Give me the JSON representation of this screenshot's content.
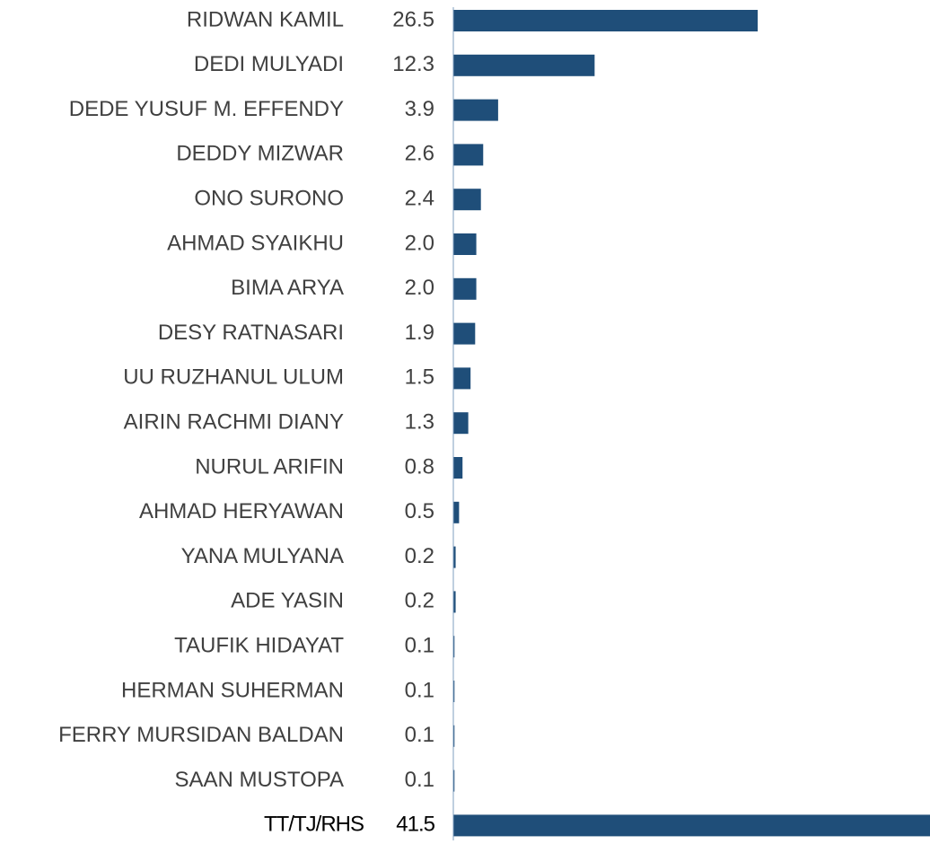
{
  "chart_data": {
    "type": "hbar",
    "color": "#1f4e79",
    "categories": [
      "RIDWAN KAMIL",
      "DEDI MULYADI",
      "DEDE YUSUF M. EFFENDY",
      "DEDDY MIZWAR",
      "ONO SURONO",
      "AHMAD SYAIKHU",
      "BIMA ARYA",
      "DESY RATNASARI",
      "UU RUZHANUL ULUM",
      "AIRIN RACHMI DIANY",
      "NURUL ARIFIN",
      "AHMAD HERYAWAN",
      "YANA MULYANA",
      "ADE YASIN",
      "TAUFIK HIDAYAT",
      "HERMAN SUHERMAN",
      "FERRY MURSIDAN BALDAN",
      "SAAN MUSTOPA",
      "TT/TJ/RHS"
    ],
    "values": [
      26.5,
      12.3,
      3.9,
      2.6,
      2.4,
      2.0,
      2.0,
      1.9,
      1.5,
      1.3,
      0.8,
      0.5,
      0.2,
      0.2,
      0.1,
      0.1,
      0.1,
      0.1,
      41.5
    ],
    "value_labels": [
      "26.5",
      "12.3",
      "3.9",
      "2.6",
      "2.4",
      "2.0",
      "2.0",
      "1.9",
      "1.5",
      "1.3",
      "0.8",
      "0.5",
      "0.2",
      "0.2",
      "0.1",
      "0.1",
      "0.1",
      "0.1",
      "41.5"
    ]
  }
}
